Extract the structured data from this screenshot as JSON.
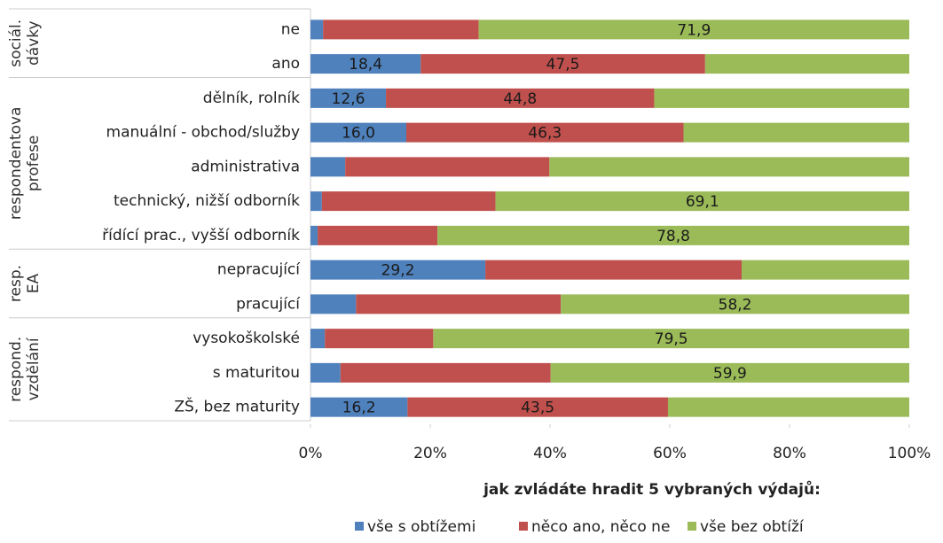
{
  "chart_data": {
    "type": "stacked_barh",
    "x_title": "jak zvládáte hradit 5 vybraných výdajů:",
    "groups": [
      {
        "lines": [
          "sociál.",
          "dávky"
        ],
        "categories": [
          "ne",
          "ano"
        ]
      },
      {
        "lines": [
          "respondentova",
          "profese"
        ],
        "categories": [
          "dělník, rolník",
          "manuální - obchod/služby",
          "administrativa",
          "technický, nižší odborník",
          "řídící prac., vyšší odborník"
        ]
      },
      {
        "lines": [
          "resp.",
          "EA"
        ],
        "categories": [
          "nepracující",
          "pracující"
        ]
      },
      {
        "lines": [
          "respond.",
          "vzdělání"
        ],
        "categories": [
          "vysokoškolské",
          "s maturitou",
          "ZŠ, bez maturity"
        ]
      }
    ],
    "series": [
      {
        "name": "vše s obtížemi",
        "color": "#4f81bd",
        "values": [
          2.1,
          18.4,
          12.6,
          16.0,
          5.8,
          1.9,
          1.2,
          29.2,
          7.6,
          2.4,
          5.0,
          16.2
        ],
        "value_labels": [
          null,
          "18,4",
          "12,6",
          "16,0",
          null,
          null,
          null,
          "29,2",
          null,
          null,
          null,
          "16,2"
        ]
      },
      {
        "name": "něco ano, něco ne",
        "color": "#c0504d",
        "values": [
          26.0,
          47.5,
          44.8,
          46.3,
          34.1,
          29.0,
          20.0,
          42.8,
          34.2,
          18.1,
          35.1,
          43.5
        ],
        "value_labels": [
          null,
          "47,5",
          "44,8",
          "46,3",
          null,
          null,
          null,
          null,
          null,
          null,
          null,
          "43,5"
        ]
      },
      {
        "name": "vše bez obtíží",
        "color": "#9bbb59",
        "values": [
          71.9,
          34.1,
          42.6,
          37.7,
          60.1,
          69.1,
          78.8,
          28.0,
          58.2,
          79.5,
          59.9,
          40.3
        ],
        "value_labels": [
          "71,9",
          null,
          null,
          null,
          null,
          "69,1",
          "78,8",
          null,
          "58,2",
          "79,5",
          "59,9",
          null
        ]
      }
    ],
    "xlim": [
      0,
      100
    ],
    "xticks": [
      {
        "value": 0,
        "label": "0%"
      },
      {
        "value": 20,
        "label": "20%"
      },
      {
        "value": 40,
        "label": "40%"
      },
      {
        "value": 60,
        "label": "60%"
      },
      {
        "value": 80,
        "label": "80%"
      },
      {
        "value": 100,
        "label": "100%"
      }
    ],
    "grid": false,
    "legend": "bottom"
  }
}
